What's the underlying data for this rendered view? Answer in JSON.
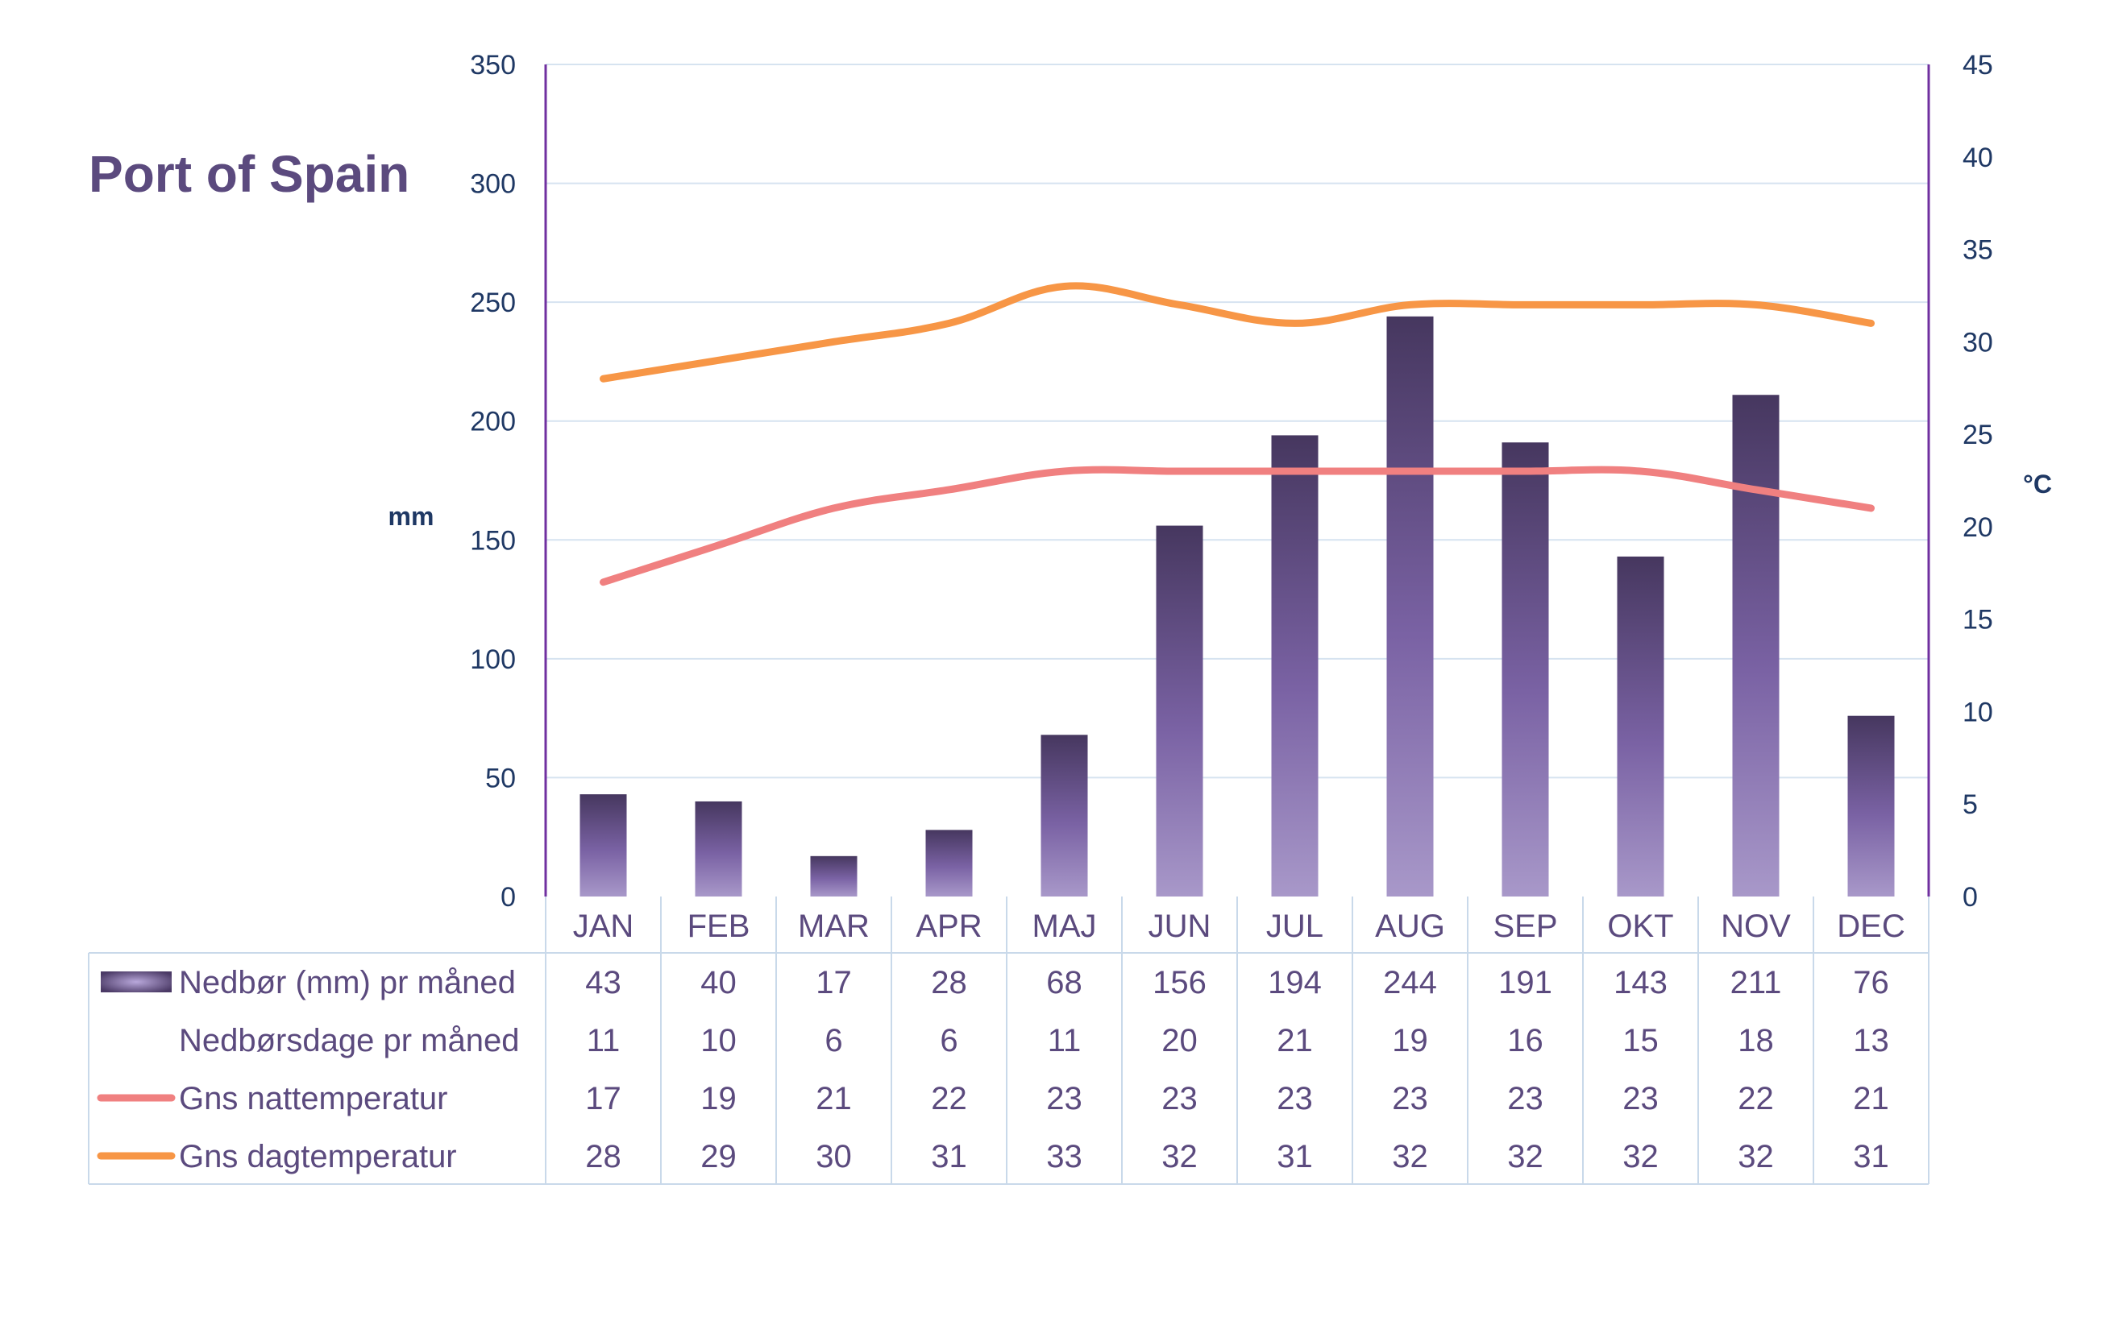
{
  "chart_data": {
    "type": "bar",
    "title": "Port of Spain",
    "categories": [
      "JAN",
      "FEB",
      "MAR",
      "APR",
      "MAJ",
      "JUN",
      "JUL",
      "AUG",
      "SEP",
      "OKT",
      "NOV",
      "DEC"
    ],
    "y_left": {
      "label": "mm",
      "ylim": [
        0,
        350
      ],
      "ticks": [
        "0",
        "50",
        "100",
        "150",
        "200",
        "250",
        "300",
        "350"
      ]
    },
    "y_right": {
      "label": "°C",
      "ylim": [
        0,
        45
      ],
      "ticks": [
        "0",
        "5",
        "10",
        "15",
        "20",
        "25",
        "30",
        "35",
        "40",
        "45"
      ]
    },
    "grid": true,
    "legend": "data-table-below",
    "series": [
      {
        "name": "Nedbør (mm) pr måned",
        "type": "bar",
        "axis": "left",
        "color": "#4B3A66",
        "values": [
          43,
          40,
          17,
          28,
          68,
          156,
          194,
          244,
          191,
          143,
          211,
          76
        ]
      },
      {
        "name": "Nedbørsdage pr måned",
        "type": "table-only",
        "values": [
          11,
          10,
          6,
          6,
          11,
          20,
          21,
          19,
          16,
          15,
          18,
          13
        ]
      },
      {
        "name": "Gns nattemperatur",
        "type": "line",
        "axis": "right",
        "color": "#F08080",
        "values": [
          17,
          19,
          21,
          22,
          23,
          23,
          23,
          23,
          23,
          23,
          22,
          21
        ]
      },
      {
        "name": "Gns dagtemperatur",
        "type": "line",
        "axis": "right",
        "color": "#F79646",
        "values": [
          28,
          29,
          30,
          31,
          33,
          32,
          31,
          32,
          32,
          32,
          32,
          31
        ]
      }
    ]
  },
  "colors": {
    "text": "#5B4A7E",
    "tick_text": "#1F3864",
    "axis": "#7030A0",
    "grid": "#D6E3F0",
    "bar_top": "#4B3A66",
    "bar_bottom": "#A696C8"
  }
}
